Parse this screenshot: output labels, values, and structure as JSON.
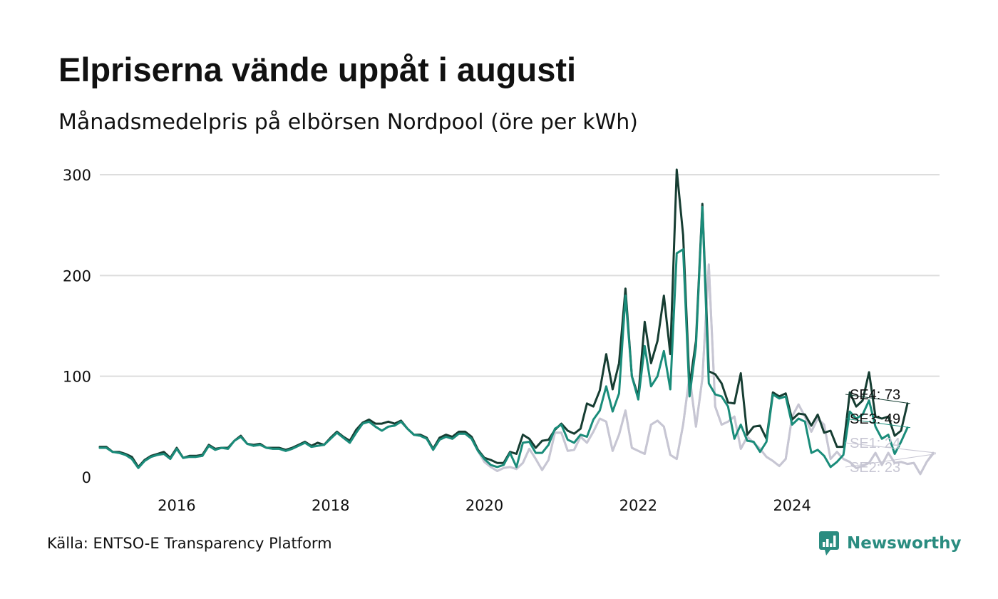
{
  "title": "Elpriserna vände uppåt i augusti",
  "subtitle": "Månadsmedelpris på elbörsen Nordpool (öre per kWh)",
  "source": "Källa: ENTSO-E Transparency Platform",
  "brand": {
    "name": "Newsworthy",
    "color": "#2a8c80",
    "icon": "bar-chart-speech-bubble-icon"
  },
  "colors": {
    "grid": "#dddddd",
    "axis_text": "#111111"
  },
  "chart_data": {
    "type": "line",
    "title": "Elpriserna vände uppåt i augusti",
    "subtitle": "Månadsmedelpris på elbörsen Nordpool (öre per kWh)",
    "ylim": [
      0,
      300
    ],
    "yticks": [
      0,
      100,
      200,
      300
    ],
    "ytick_labels": [
      "0",
      "100",
      "200",
      "300"
    ],
    "xlim": [
      "2015-01",
      "2025-12"
    ],
    "xticks": [
      "2016",
      "2018",
      "2020",
      "2022",
      "2024"
    ],
    "x_start": "2015-01",
    "x_end": "2025-08",
    "grid": true,
    "legend": "end labels at right",
    "series": [
      {
        "name": "SE2",
        "color": "#c7c6d3",
        "last_value": 23,
        "end_label": "SE2: 23",
        "values": [
          29,
          29,
          25,
          24,
          22,
          18,
          9,
          16,
          20,
          22,
          23,
          18,
          28,
          19,
          20,
          20,
          21,
          31,
          27,
          29,
          28,
          36,
          40,
          33,
          31,
          32,
          29,
          28,
          28,
          26,
          28,
          31,
          34,
          30,
          31,
          32,
          38,
          44,
          39,
          34,
          44,
          53,
          55,
          50,
          46,
          50,
          51,
          55,
          48,
          42,
          41,
          38,
          27,
          37,
          40,
          38,
          43,
          43,
          38,
          26,
          15,
          10,
          6,
          9,
          10,
          8,
          14,
          28,
          18,
          7,
          17,
          44,
          44,
          26,
          27,
          40,
          34,
          45,
          58,
          55,
          26,
          42,
          66,
          29,
          26,
          23,
          52,
          56,
          50,
          22,
          18,
          52,
          101,
          50,
          98,
          211,
          70,
          52,
          55,
          60,
          28,
          40,
          34,
          28,
          20,
          16,
          11,
          18,
          60,
          72,
          60,
          45,
          58,
          52,
          18,
          25,
          18,
          15,
          9,
          11,
          14,
          24,
          12,
          24,
          14,
          15,
          13,
          14,
          3,
          15,
          23
        ]
      },
      {
        "name": "SE1",
        "color": "#c7c6d3",
        "last_value": 24,
        "end_label": "SE1: 24",
        "values": [
          29,
          29,
          25,
          24,
          22,
          18,
          9,
          16,
          20,
          22,
          23,
          18,
          28,
          19,
          20,
          20,
          21,
          31,
          27,
          29,
          28,
          36,
          40,
          33,
          31,
          32,
          29,
          28,
          28,
          26,
          28,
          31,
          34,
          30,
          31,
          32,
          38,
          44,
          39,
          34,
          44,
          53,
          55,
          50,
          46,
          50,
          51,
          55,
          48,
          42,
          41,
          38,
          27,
          37,
          40,
          38,
          43,
          43,
          38,
          26,
          15,
          10,
          6,
          9,
          10,
          8,
          14,
          28,
          18,
          7,
          17,
          44,
          44,
          26,
          27,
          40,
          34,
          45,
          58,
          55,
          26,
          42,
          66,
          29,
          26,
          23,
          52,
          56,
          50,
          22,
          18,
          52,
          100,
          50,
          98,
          210,
          70,
          52,
          55,
          60,
          28,
          40,
          34,
          28,
          20,
          16,
          11,
          18,
          60,
          72,
          60,
          45,
          58,
          52,
          18,
          25,
          18,
          15,
          9,
          11,
          14,
          24,
          12,
          24,
          14,
          15,
          13,
          14,
          3,
          15,
          24
        ]
      },
      {
        "name": "SE4",
        "color": "#163d32",
        "last_value": 73,
        "end_label": "SE4: 73",
        "values": [
          30,
          30,
          25,
          25,
          23,
          20,
          10,
          17,
          21,
          23,
          25,
          19,
          29,
          19,
          21,
          21,
          22,
          32,
          28,
          29,
          29,
          36,
          41,
          33,
          32,
          33,
          29,
          29,
          29,
          27,
          29,
          32,
          35,
          31,
          34,
          32,
          39,
          45,
          40,
          36,
          47,
          54,
          57,
          53,
          53,
          55,
          53,
          56,
          48,
          42,
          42,
          39,
          28,
          39,
          42,
          40,
          45,
          45,
          40,
          27,
          19,
          17,
          14,
          14,
          25,
          23,
          42,
          38,
          29,
          36,
          37,
          47,
          53,
          46,
          43,
          48,
          73,
          70,
          86,
          122,
          87,
          113,
          187,
          100,
          80,
          154,
          113,
          135,
          180,
          122,
          305,
          240,
          90,
          135,
          271,
          105,
          102,
          93,
          74,
          73,
          103,
          42,
          50,
          51,
          38,
          84,
          80,
          83,
          57,
          63,
          62,
          51,
          62,
          44,
          46,
          30,
          30,
          84,
          70,
          76,
          104,
          60,
          58,
          60,
          41,
          46,
          73
        ]
      },
      {
        "name": "SE3",
        "color": "#1a8c7a",
        "last_value": 49,
        "end_label": "SE3: 49",
        "values": [
          29,
          29,
          25,
          24,
          22,
          18,
          9,
          16,
          20,
          22,
          23,
          18,
          28,
          19,
          20,
          20,
          21,
          31,
          27,
          29,
          28,
          36,
          40,
          33,
          31,
          32,
          29,
          28,
          28,
          26,
          28,
          31,
          34,
          30,
          31,
          32,
          38,
          44,
          39,
          34,
          44,
          53,
          55,
          50,
          46,
          50,
          51,
          55,
          48,
          42,
          41,
          38,
          27,
          37,
          40,
          38,
          43,
          43,
          38,
          26,
          18,
          12,
          10,
          12,
          24,
          10,
          34,
          35,
          24,
          24,
          32,
          48,
          52,
          37,
          34,
          42,
          40,
          57,
          66,
          90,
          65,
          83,
          180,
          100,
          77,
          130,
          90,
          100,
          125,
          87,
          222,
          226,
          80,
          130,
          268,
          93,
          82,
          80,
          70,
          38,
          52,
          36,
          35,
          25,
          35,
          82,
          78,
          80,
          52,
          58,
          55,
          24,
          27,
          21,
          10,
          15,
          22,
          65,
          58,
          62,
          76,
          50,
          38,
          42,
          23,
          35,
          49
        ]
      }
    ]
  }
}
